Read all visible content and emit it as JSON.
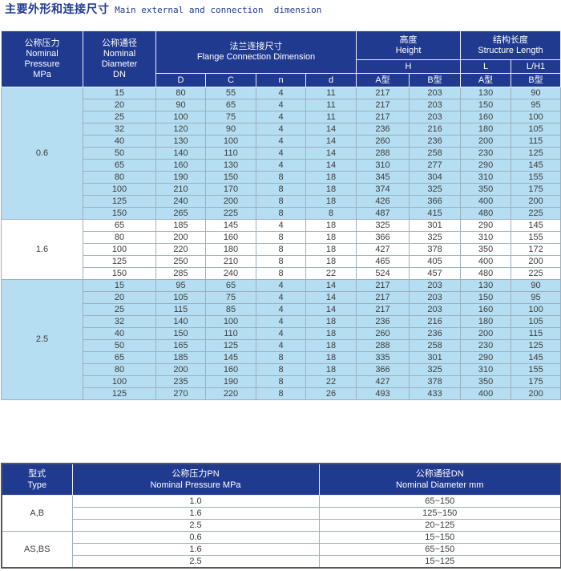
{
  "title": {
    "zh": "主要外形和连接尺寸",
    "en": " Main external and connection  dimension"
  },
  "colors": {
    "header_bg": "#203a8f",
    "header_text": "#ffffff",
    "row_blue": "#b5def2",
    "row_white": "#ffffff",
    "border_gray": "#9cb0bd",
    "title_text": "#203a8f"
  },
  "main_table": {
    "headers": {
      "pressure": "公称压力\nNominal\nPressure\nMPa",
      "diameter": "公称通径\nNominal\nDiameter\nDN",
      "flange": "法兰连接尺寸\nFlange Connection Dimension",
      "flange_cols": [
        "D",
        "C",
        "n",
        "d"
      ],
      "height": "高度\nHeight",
      "h": "H",
      "structure": "结构长度\nStructure Length",
      "l": "L",
      "lh1": "L/H1",
      "type_a": "A型",
      "type_b": "B型"
    },
    "groups": [
      {
        "pressure": "0.6",
        "shade": "blue",
        "rows": [
          [
            "15",
            "80",
            "55",
            "4",
            "11",
            "217",
            "203",
            "130",
            "90"
          ],
          [
            "20",
            "90",
            "65",
            "4",
            "11",
            "217",
            "203",
            "150",
            "95"
          ],
          [
            "25",
            "100",
            "75",
            "4",
            "11",
            "217",
            "203",
            "160",
            "100"
          ],
          [
            "32",
            "120",
            "90",
            "4",
            "14",
            "236",
            "216",
            "180",
            "105"
          ],
          [
            "40",
            "130",
            "100",
            "4",
            "14",
            "260",
            "236",
            "200",
            "115"
          ],
          [
            "50",
            "140",
            "110",
            "4",
            "14",
            "288",
            "258",
            "230",
            "125"
          ],
          [
            "65",
            "160",
            "130",
            "4",
            "14",
            "310",
            "277",
            "290",
            "145"
          ],
          [
            "80",
            "190",
            "150",
            "8",
            "18",
            "345",
            "304",
            "310",
            "155"
          ],
          [
            "100",
            "210",
            "170",
            "8",
            "18",
            "374",
            "325",
            "350",
            "175"
          ],
          [
            "125",
            "240",
            "200",
            "8",
            "18",
            "426",
            "366",
            "400",
            "200"
          ],
          [
            "150",
            "265",
            "225",
            "8",
            "8",
            "487",
            "415",
            "480",
            "225"
          ]
        ]
      },
      {
        "pressure": "1.6",
        "shade": "white",
        "rows": [
          [
            "65",
            "185",
            "145",
            "4",
            "18",
            "325",
            "301",
            "290",
            "145"
          ],
          [
            "80",
            "200",
            "160",
            "8",
            "18",
            "366",
            "325",
            "310",
            "155"
          ],
          [
            "100",
            "220",
            "180",
            "8",
            "18",
            "427",
            "378",
            "350",
            "172"
          ],
          [
            "125",
            "250",
            "210",
            "8",
            "18",
            "465",
            "405",
            "400",
            "200"
          ],
          [
            "150",
            "285",
            "240",
            "8",
            "22",
            "524",
            "457",
            "480",
            "225"
          ]
        ]
      },
      {
        "pressure": "2.5",
        "shade": "blue",
        "rows": [
          [
            "15",
            "95",
            "65",
            "4",
            "14",
            "217",
            "203",
            "130",
            "90"
          ],
          [
            "20",
            "105",
            "75",
            "4",
            "14",
            "217",
            "203",
            "150",
            "95"
          ],
          [
            "25",
            "115",
            "85",
            "4",
            "14",
            "217",
            "203",
            "160",
            "100"
          ],
          [
            "32",
            "140",
            "100",
            "4",
            "18",
            "236",
            "216",
            "180",
            "105"
          ],
          [
            "40",
            "150",
            "110",
            "4",
            "18",
            "260",
            "236",
            "200",
            "115"
          ],
          [
            "50",
            "165",
            "125",
            "4",
            "18",
            "288",
            "258",
            "230",
            "125"
          ],
          [
            "65",
            "185",
            "145",
            "8",
            "18",
            "335",
            "301",
            "290",
            "145"
          ],
          [
            "80",
            "200",
            "160",
            "8",
            "18",
            "366",
            "325",
            "310",
            "155"
          ],
          [
            "100",
            "235",
            "190",
            "8",
            "22",
            "427",
            "378",
            "350",
            "175"
          ],
          [
            "125",
            "270",
            "220",
            "8",
            "26",
            "493",
            "433",
            "400",
            "200"
          ]
        ]
      }
    ]
  },
  "type_table": {
    "headers": {
      "type": "型式\nType",
      "pressure": "公称压力PN\nNominal Pressure MPa",
      "diameter": "公称通径DN\nNominal Diameter mm"
    },
    "groups": [
      {
        "type": "A,B",
        "rows": [
          [
            "1.0",
            "65~150"
          ],
          [
            "1.6",
            "125~150"
          ],
          [
            "2.5",
            "20~125"
          ]
        ]
      },
      {
        "type": "AS,BS",
        "rows": [
          [
            "0.6",
            "15~150"
          ],
          [
            "1.6",
            "65~150"
          ],
          [
            "2.5",
            "15~125"
          ]
        ]
      }
    ]
  }
}
